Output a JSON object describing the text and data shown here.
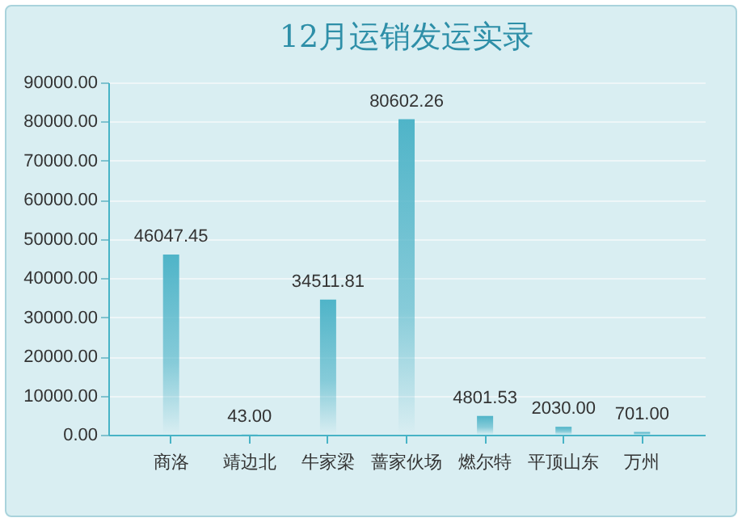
{
  "chart_data": {
    "type": "bar",
    "title": "12月运销发运实录",
    "categories": [
      "商洛",
      "靖边北",
      "牛家梁",
      "蔷家伙场",
      "燃尔特",
      "平顶山东",
      "万州"
    ],
    "series": [
      {
        "color": "#4fb4c8",
        "values": [
          46047.45,
          43.0,
          34511.81,
          80602.26,
          4801.53,
          2030.0,
          701.0
        ],
        "value_labels": [
          "46047.45",
          "43.00",
          "34511.81",
          "80602.26",
          "4801.53",
          "2030.00",
          "701.00"
        ]
      }
    ],
    "ylim": [
      0,
      90000
    ],
    "yticks": [
      {
        "value": 0,
        "label": "0.00"
      },
      {
        "value": 10000,
        "label": "10000.00"
      },
      {
        "value": 20000,
        "label": "20000.00"
      },
      {
        "value": 30000,
        "label": "30000.00"
      },
      {
        "value": 40000,
        "label": "40000.00"
      },
      {
        "value": 50000,
        "label": "50000.00"
      },
      {
        "value": 60000,
        "label": "60000.00"
      },
      {
        "value": 70000,
        "label": "70000.00"
      },
      {
        "value": 80000,
        "label": "80000.00"
      },
      {
        "value": 90000,
        "label": "90000.00"
      }
    ],
    "grid": "y"
  }
}
